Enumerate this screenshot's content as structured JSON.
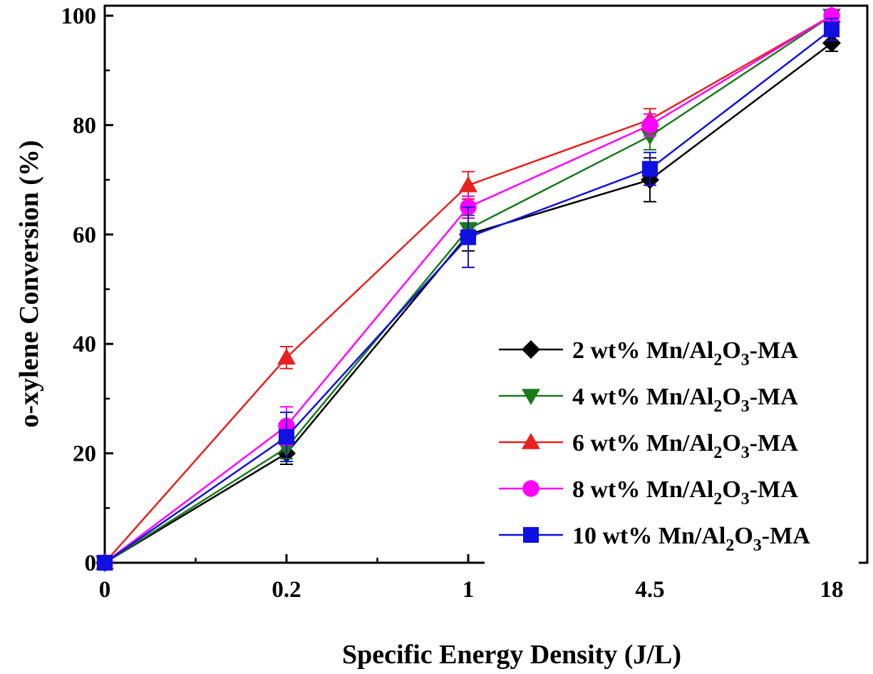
{
  "chart_data": {
    "type": "line",
    "xlabel": "Specific Energy Density (J/L)",
    "ylabel": "o-xylene Conversion (%)",
    "categories": [
      "0",
      "0.2",
      "1",
      "4.5",
      "18"
    ],
    "ylim": [
      0,
      100
    ],
    "yticks": [
      0,
      20,
      40,
      60,
      80,
      100
    ],
    "grid": false,
    "legend_position": "bottom-right",
    "series": [
      {
        "name_parts": [
          "2 wt% Mn/Al",
          "2",
          "O",
          "3",
          "-MA"
        ],
        "marker": "diamond",
        "color": "#000000",
        "values": [
          0,
          20,
          60,
          70,
          95
        ],
        "errors": [
          0.5,
          2,
          3,
          4,
          1.5
        ]
      },
      {
        "name_parts": [
          "4 wt% Mn/Al",
          "2",
          "O",
          "3",
          "-MA"
        ],
        "marker": "triangle-down",
        "color": "#1a7a1a",
        "values": [
          0,
          21,
          61,
          78,
          100
        ],
        "errors": [
          0.5,
          2,
          2.5,
          2.5,
          1
        ]
      },
      {
        "name_parts": [
          "6 wt% Mn/Al",
          "2",
          "O",
          "3",
          "-MA"
        ],
        "marker": "triangle-up",
        "color": "#e8211d",
        "values": [
          0,
          37.5,
          69,
          81,
          100
        ],
        "errors": [
          0.5,
          2,
          2.5,
          2,
          1
        ]
      },
      {
        "name_parts": [
          "8 wt% Mn/Al",
          "2",
          "O",
          "3",
          "-MA"
        ],
        "marker": "circle",
        "color": "#ff00ff",
        "values": [
          0,
          25,
          65,
          80,
          100
        ],
        "errors": [
          0.5,
          3.5,
          2,
          2,
          1
        ]
      },
      {
        "name_parts": [
          "10 wt% Mn/Al",
          "2",
          "O",
          "3",
          "-MA"
        ],
        "marker": "square",
        "color": "#1010e0",
        "values": [
          0,
          23,
          59.5,
          72,
          97.5
        ],
        "errors": [
          0.5,
          4.5,
          5.5,
          3,
          2
        ]
      }
    ]
  }
}
